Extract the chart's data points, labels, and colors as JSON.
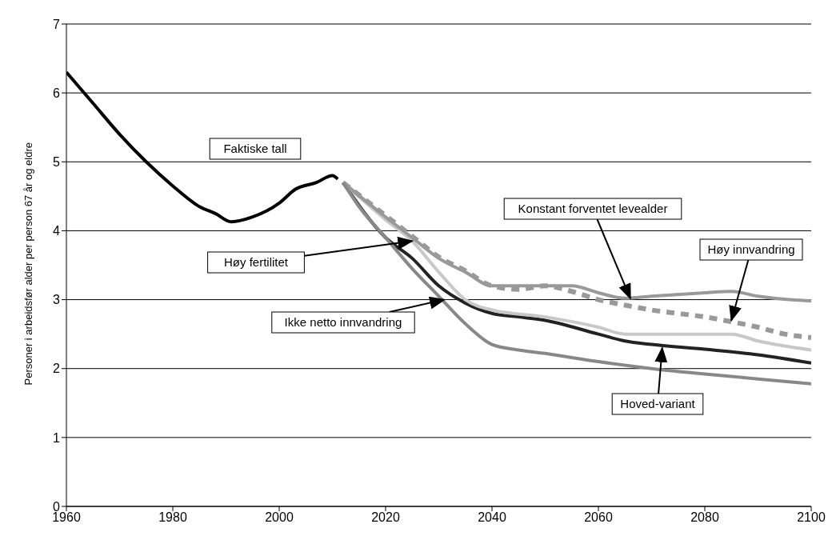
{
  "chart_data": {
    "type": "line",
    "ylabel": "Personer i arbeidsfør alder per person 67 år og eldre",
    "xlim": [
      1960,
      2100
    ],
    "xticks": [
      1960,
      1980,
      2000,
      2020,
      2040,
      2060,
      2080,
      2100
    ],
    "ylim": [
      0,
      7
    ],
    "yticks": [
      0,
      1,
      2,
      3,
      4,
      5,
      6,
      7
    ],
    "grid": "y",
    "marker": "none",
    "line_style": "solid",
    "annotations": [
      "Faktiske tall",
      {
        "text": "Hoved-variant",
        "x": 2072,
        "y": 2.3
      },
      "Høy fertilitet",
      {
        "text": "Konstant forventet levealder",
        "x": 2066,
        "y": 3.02
      },
      {
        "text": "Høy innvandring",
        "x": 2085,
        "y": 2.7
      },
      {
        "text": "Ikke netto innvandring",
        "x": 2031,
        "y": 3.0
      }
    ],
    "series": [
      {
        "color": "#000000",
        "x": [
          1960,
          1965,
          1970,
          1975,
          1980,
          1985,
          1988,
          1991,
          1995,
          2000,
          2003,
          2007,
          2010,
          2011
        ],
        "values": [
          6.3,
          5.85,
          5.4,
          5.0,
          4.65,
          4.35,
          4.25,
          4.13,
          4.2,
          4.4,
          4.6,
          4.7,
          4.8,
          4.75
        ]
      },
      {
        "color": "#222222",
        "x": [
          2012,
          2020,
          2025,
          2030,
          2035,
          2040,
          2045,
          2050,
          2060,
          2065,
          2070,
          2080,
          2090,
          2100
        ],
        "values": [
          4.7,
          3.9,
          3.6,
          3.2,
          2.95,
          2.8,
          2.75,
          2.7,
          2.5,
          2.4,
          2.35,
          2.28,
          2.2,
          2.08
        ]
      },
      {
        "color": "#c8c8c8",
        "x": [
          2012,
          2020,
          2025,
          2030,
          2035,
          2040,
          2050,
          2060,
          2065,
          2080,
          2085,
          2090,
          2100
        ],
        "values": [
          4.7,
          4.16,
          3.85,
          3.4,
          3.0,
          2.85,
          2.75,
          2.6,
          2.5,
          2.5,
          2.5,
          2.4,
          2.27
        ]
      },
      {
        "color": "#999999",
        "x": [
          2012,
          2020,
          2025,
          2030,
          2035,
          2040,
          2045,
          2050,
          2055,
          2060,
          2065,
          2070,
          2080,
          2085,
          2090,
          2100
        ],
        "values": [
          4.7,
          4.2,
          3.9,
          3.6,
          3.4,
          3.2,
          3.2,
          3.2,
          3.2,
          3.1,
          3.02,
          3.05,
          3.1,
          3.12,
          3.05,
          2.98
        ]
      },
      {
        "color": "#999999",
        "line_style": "dashed",
        "x": [
          2012,
          2020,
          2025,
          2030,
          2035,
          2040,
          2045,
          2050,
          2055,
          2060,
          2065,
          2070,
          2075,
          2080,
          2085,
          2090,
          2095,
          2100
        ],
        "values": [
          4.7,
          4.22,
          3.92,
          3.62,
          3.42,
          3.2,
          3.15,
          3.2,
          3.12,
          3.0,
          2.92,
          2.85,
          2.8,
          2.75,
          2.68,
          2.6,
          2.5,
          2.45
        ]
      },
      {
        "color": "#888888",
        "x": [
          2012,
          2015,
          2020,
          2025,
          2030,
          2035,
          2040,
          2045,
          2050,
          2060,
          2070,
          2080,
          2090,
          2100
        ],
        "values": [
          4.7,
          4.35,
          3.9,
          3.45,
          3.05,
          2.65,
          2.35,
          2.27,
          2.22,
          2.1,
          2.0,
          1.92,
          1.85,
          1.78
        ]
      }
    ]
  }
}
